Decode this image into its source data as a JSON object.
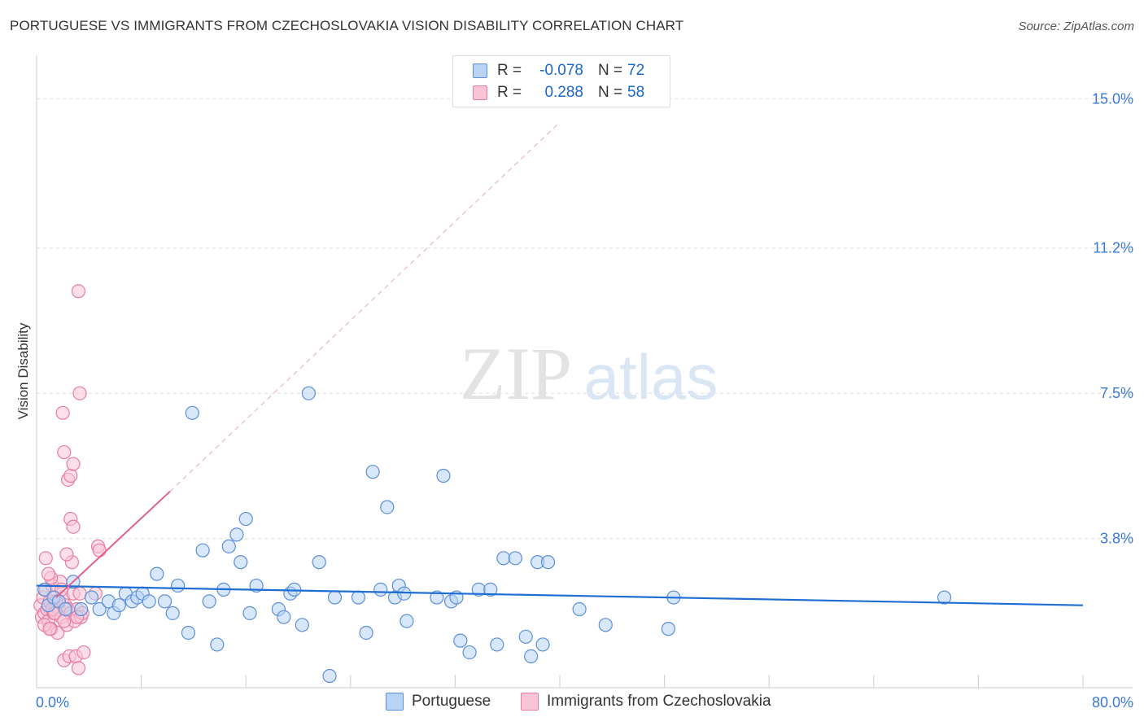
{
  "title": "PORTUGUESE VS IMMIGRANTS FROM CZECHOSLOVAKIA VISION DISABILITY CORRELATION CHART",
  "source": "Source: ZipAtlas.com",
  "watermark": {
    "zip": "ZIP",
    "atlas": "atlas"
  },
  "legend": {
    "rows": [
      {
        "r_label": "R =",
        "r_value": "-0.078",
        "n_label": "N =",
        "n_value": "72"
      },
      {
        "r_label": "R =",
        "r_value": "0.288",
        "n_label": "N =",
        "n_value": "58"
      }
    ]
  },
  "colors": {
    "portuguese_fill": "#b8d3f5",
    "portuguese_stroke": "#5b8fd6",
    "portuguese_line": "#1f6ed4",
    "czech_fill": "#f9c4d5",
    "czech_stroke": "#e87ca0",
    "czech_line": "#e0608a",
    "axis_text": "#3a78d4",
    "grid": "#dddddd"
  },
  "chart_data": {
    "type": "scatter",
    "title": "PORTUGUESE VS IMMIGRANTS FROM CZECHOSLOVAKIA VISION DISABILITY CORRELATION CHART",
    "xlabel": "",
    "ylabel": "Vision Disability",
    "xlim": [
      0,
      80
    ],
    "ylim": [
      0,
      15.9
    ],
    "x_tick_labels": [
      "0.0%",
      "80.0%"
    ],
    "y_ticks": [
      3.8,
      7.5,
      11.2,
      15.0
    ],
    "y_tick_labels": [
      "3.8%",
      "7.5%",
      "11.2%",
      "15.0%"
    ],
    "series": [
      {
        "name": "Portuguese",
        "points": [
          [
            0.6,
            2.5
          ],
          [
            0.9,
            2.1
          ],
          [
            1.3,
            2.3
          ],
          [
            1.7,
            2.2
          ],
          [
            2.2,
            2.0
          ],
          [
            2.8,
            2.7
          ],
          [
            3.4,
            2.0
          ],
          [
            4.2,
            2.3
          ],
          [
            4.8,
            2.0
          ],
          [
            5.5,
            2.2
          ],
          [
            5.9,
            1.9
          ],
          [
            6.3,
            2.1
          ],
          [
            6.8,
            2.4
          ],
          [
            7.3,
            2.2
          ],
          [
            7.7,
            2.3
          ],
          [
            8.1,
            2.4
          ],
          [
            8.6,
            2.2
          ],
          [
            9.2,
            2.9
          ],
          [
            9.8,
            2.2
          ],
          [
            10.4,
            1.9
          ],
          [
            10.8,
            2.6
          ],
          [
            11.6,
            1.4
          ],
          [
            11.9,
            7.0
          ],
          [
            12.7,
            3.5
          ],
          [
            13.2,
            2.2
          ],
          [
            13.8,
            1.1
          ],
          [
            14.3,
            2.5
          ],
          [
            14.7,
            3.6
          ],
          [
            15.3,
            3.9
          ],
          [
            15.6,
            3.2
          ],
          [
            16.0,
            4.3
          ],
          [
            16.3,
            1.9
          ],
          [
            16.8,
            2.6
          ],
          [
            18.5,
            2.0
          ],
          [
            18.9,
            1.8
          ],
          [
            19.4,
            2.4
          ],
          [
            19.7,
            2.5
          ],
          [
            20.3,
            1.6
          ],
          [
            20.8,
            7.5
          ],
          [
            21.6,
            3.2
          ],
          [
            22.4,
            0.3
          ],
          [
            22.8,
            2.3
          ],
          [
            24.6,
            2.3
          ],
          [
            25.2,
            1.4
          ],
          [
            25.7,
            5.5
          ],
          [
            26.3,
            2.5
          ],
          [
            26.8,
            4.6
          ],
          [
            27.7,
            2.6
          ],
          [
            27.4,
            2.3
          ],
          [
            28.1,
            2.4
          ],
          [
            28.3,
            1.7
          ],
          [
            30.6,
            2.3
          ],
          [
            31.1,
            5.4
          ],
          [
            31.7,
            2.2
          ],
          [
            32.1,
            2.3
          ],
          [
            32.4,
            1.2
          ],
          [
            33.1,
            0.9
          ],
          [
            33.8,
            2.5
          ],
          [
            34.7,
            2.5
          ],
          [
            35.2,
            1.1
          ],
          [
            35.7,
            3.3
          ],
          [
            36.6,
            3.3
          ],
          [
            37.4,
            1.3
          ],
          [
            37.8,
            0.8
          ],
          [
            38.3,
            3.2
          ],
          [
            38.7,
            1.1
          ],
          [
            39.1,
            3.2
          ],
          [
            41.5,
            2.0
          ],
          [
            43.5,
            1.6
          ],
          [
            48.3,
            1.5
          ],
          [
            48.7,
            2.3
          ],
          [
            69.4,
            2.3
          ]
        ]
      },
      {
        "name": "Immigrants from Czechoslovakia",
        "points": [
          [
            0.3,
            2.1
          ],
          [
            0.4,
            1.8
          ],
          [
            0.5,
            2.3
          ],
          [
            0.6,
            1.9
          ],
          [
            0.7,
            2.5
          ],
          [
            0.8,
            2.0
          ],
          [
            0.9,
            1.7
          ],
          [
            1.0,
            2.2
          ],
          [
            1.1,
            1.5
          ],
          [
            1.2,
            2.6
          ],
          [
            1.3,
            1.9
          ],
          [
            1.4,
            2.3
          ],
          [
            1.5,
            2.1
          ],
          [
            1.6,
            1.4
          ],
          [
            1.7,
            2.0
          ],
          [
            1.8,
            2.7
          ],
          [
            1.9,
            1.8
          ],
          [
            2.0,
            2.3
          ],
          [
            2.1,
            0.7
          ],
          [
            2.2,
            2.1
          ],
          [
            2.3,
            1.6
          ],
          [
            2.4,
            2.0
          ],
          [
            2.5,
            0.8
          ],
          [
            2.6,
            1.9
          ],
          [
            2.7,
            3.2
          ],
          [
            2.8,
            2.4
          ],
          [
            2.9,
            1.7
          ],
          [
            3.0,
            0.8
          ],
          [
            3.1,
            2.0
          ],
          [
            3.2,
            0.5
          ],
          [
            3.3,
            2.4
          ],
          [
            3.4,
            1.8
          ],
          [
            3.5,
            1.9
          ],
          [
            0.7,
            3.3
          ],
          [
            1.1,
            2.8
          ],
          [
            1.5,
            2.2
          ],
          [
            1.9,
            2.5
          ],
          [
            2.3,
            3.4
          ],
          [
            2.6,
            4.3
          ],
          [
            2.8,
            4.1
          ],
          [
            2.4,
            5.3
          ],
          [
            2.6,
            5.4
          ],
          [
            2.8,
            5.7
          ],
          [
            2.1,
            6.0
          ],
          [
            2.0,
            7.0
          ],
          [
            3.3,
            7.5
          ],
          [
            3.2,
            10.1
          ],
          [
            4.7,
            3.6
          ],
          [
            4.8,
            3.5
          ],
          [
            4.5,
            2.4
          ],
          [
            1.2,
            2.0
          ],
          [
            0.6,
            1.6
          ],
          [
            1.0,
            1.5
          ],
          [
            1.4,
            1.9
          ],
          [
            2.1,
            1.7
          ],
          [
            3.6,
            0.9
          ],
          [
            0.9,
            2.9
          ],
          [
            3.1,
            1.8
          ]
        ]
      }
    ],
    "trend_lines": [
      {
        "series": "Portuguese",
        "x": [
          0,
          80
        ],
        "y": [
          2.6,
          2.1
        ],
        "style": "solid"
      },
      {
        "series": "Immigrants from Czechoslovakia",
        "x": [
          1.5,
          10.2
        ],
        "y": [
          2.3,
          5.0
        ],
        "style": "solid"
      },
      {
        "series": "Immigrants from Czechoslovakia",
        "x": [
          10.2,
          40
        ],
        "y": [
          5.0,
          14.4
        ],
        "style": "dashed"
      }
    ]
  },
  "bottom_legend": [
    {
      "label": "Portuguese"
    },
    {
      "label": "Immigrants from Czechoslovakia"
    }
  ]
}
